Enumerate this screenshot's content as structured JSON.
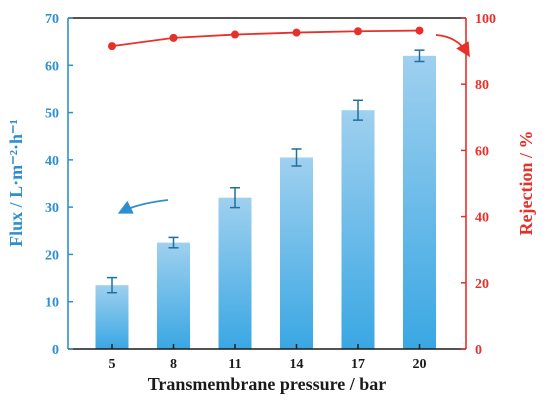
{
  "chart_data": {
    "type": "bar",
    "title": "",
    "xlabel": "Transmembrane pressure / bar",
    "ylabel_left": "Flux / L·m⁻²·h⁻¹",
    "ylabel_right": "Rejection / %",
    "categories": [
      "5",
      "8",
      "11",
      "14",
      "17",
      "20"
    ],
    "series": [
      {
        "axis": "left",
        "kind": "bar",
        "values": [
          13.5,
          22.5,
          32.0,
          40.5,
          50.5,
          62.0
        ],
        "errors": [
          1.6,
          1.1,
          2.1,
          1.8,
          2.1,
          1.2
        ]
      },
      {
        "axis": "right",
        "kind": "line",
        "values": [
          91.5,
          94.0,
          95.0,
          95.6,
          96.0,
          96.2
        ]
      }
    ],
    "ylim_left": [
      0,
      70
    ],
    "yticks_left": [
      0,
      10,
      20,
      30,
      40,
      50,
      60,
      70
    ],
    "ylim_right": [
      0,
      100
    ],
    "yticks_right": [
      0,
      20,
      40,
      60,
      80,
      100
    ],
    "grid": false,
    "legend": "none",
    "colors": {
      "left_axis": "#2e8fd0",
      "right_axis": "#e8302a",
      "bar_top": "#9fd0ef",
      "bar_bottom": "#3aa7e3",
      "error": "#1f6f9f",
      "line": "#e8302a",
      "text": "#1a1a1a"
    },
    "annotations": [
      {
        "kind": "arrow",
        "points_to": "left axis",
        "color": "#2e8fd0"
      },
      {
        "kind": "arrow",
        "points_to": "right axis",
        "color": "#e8302a"
      }
    ]
  }
}
